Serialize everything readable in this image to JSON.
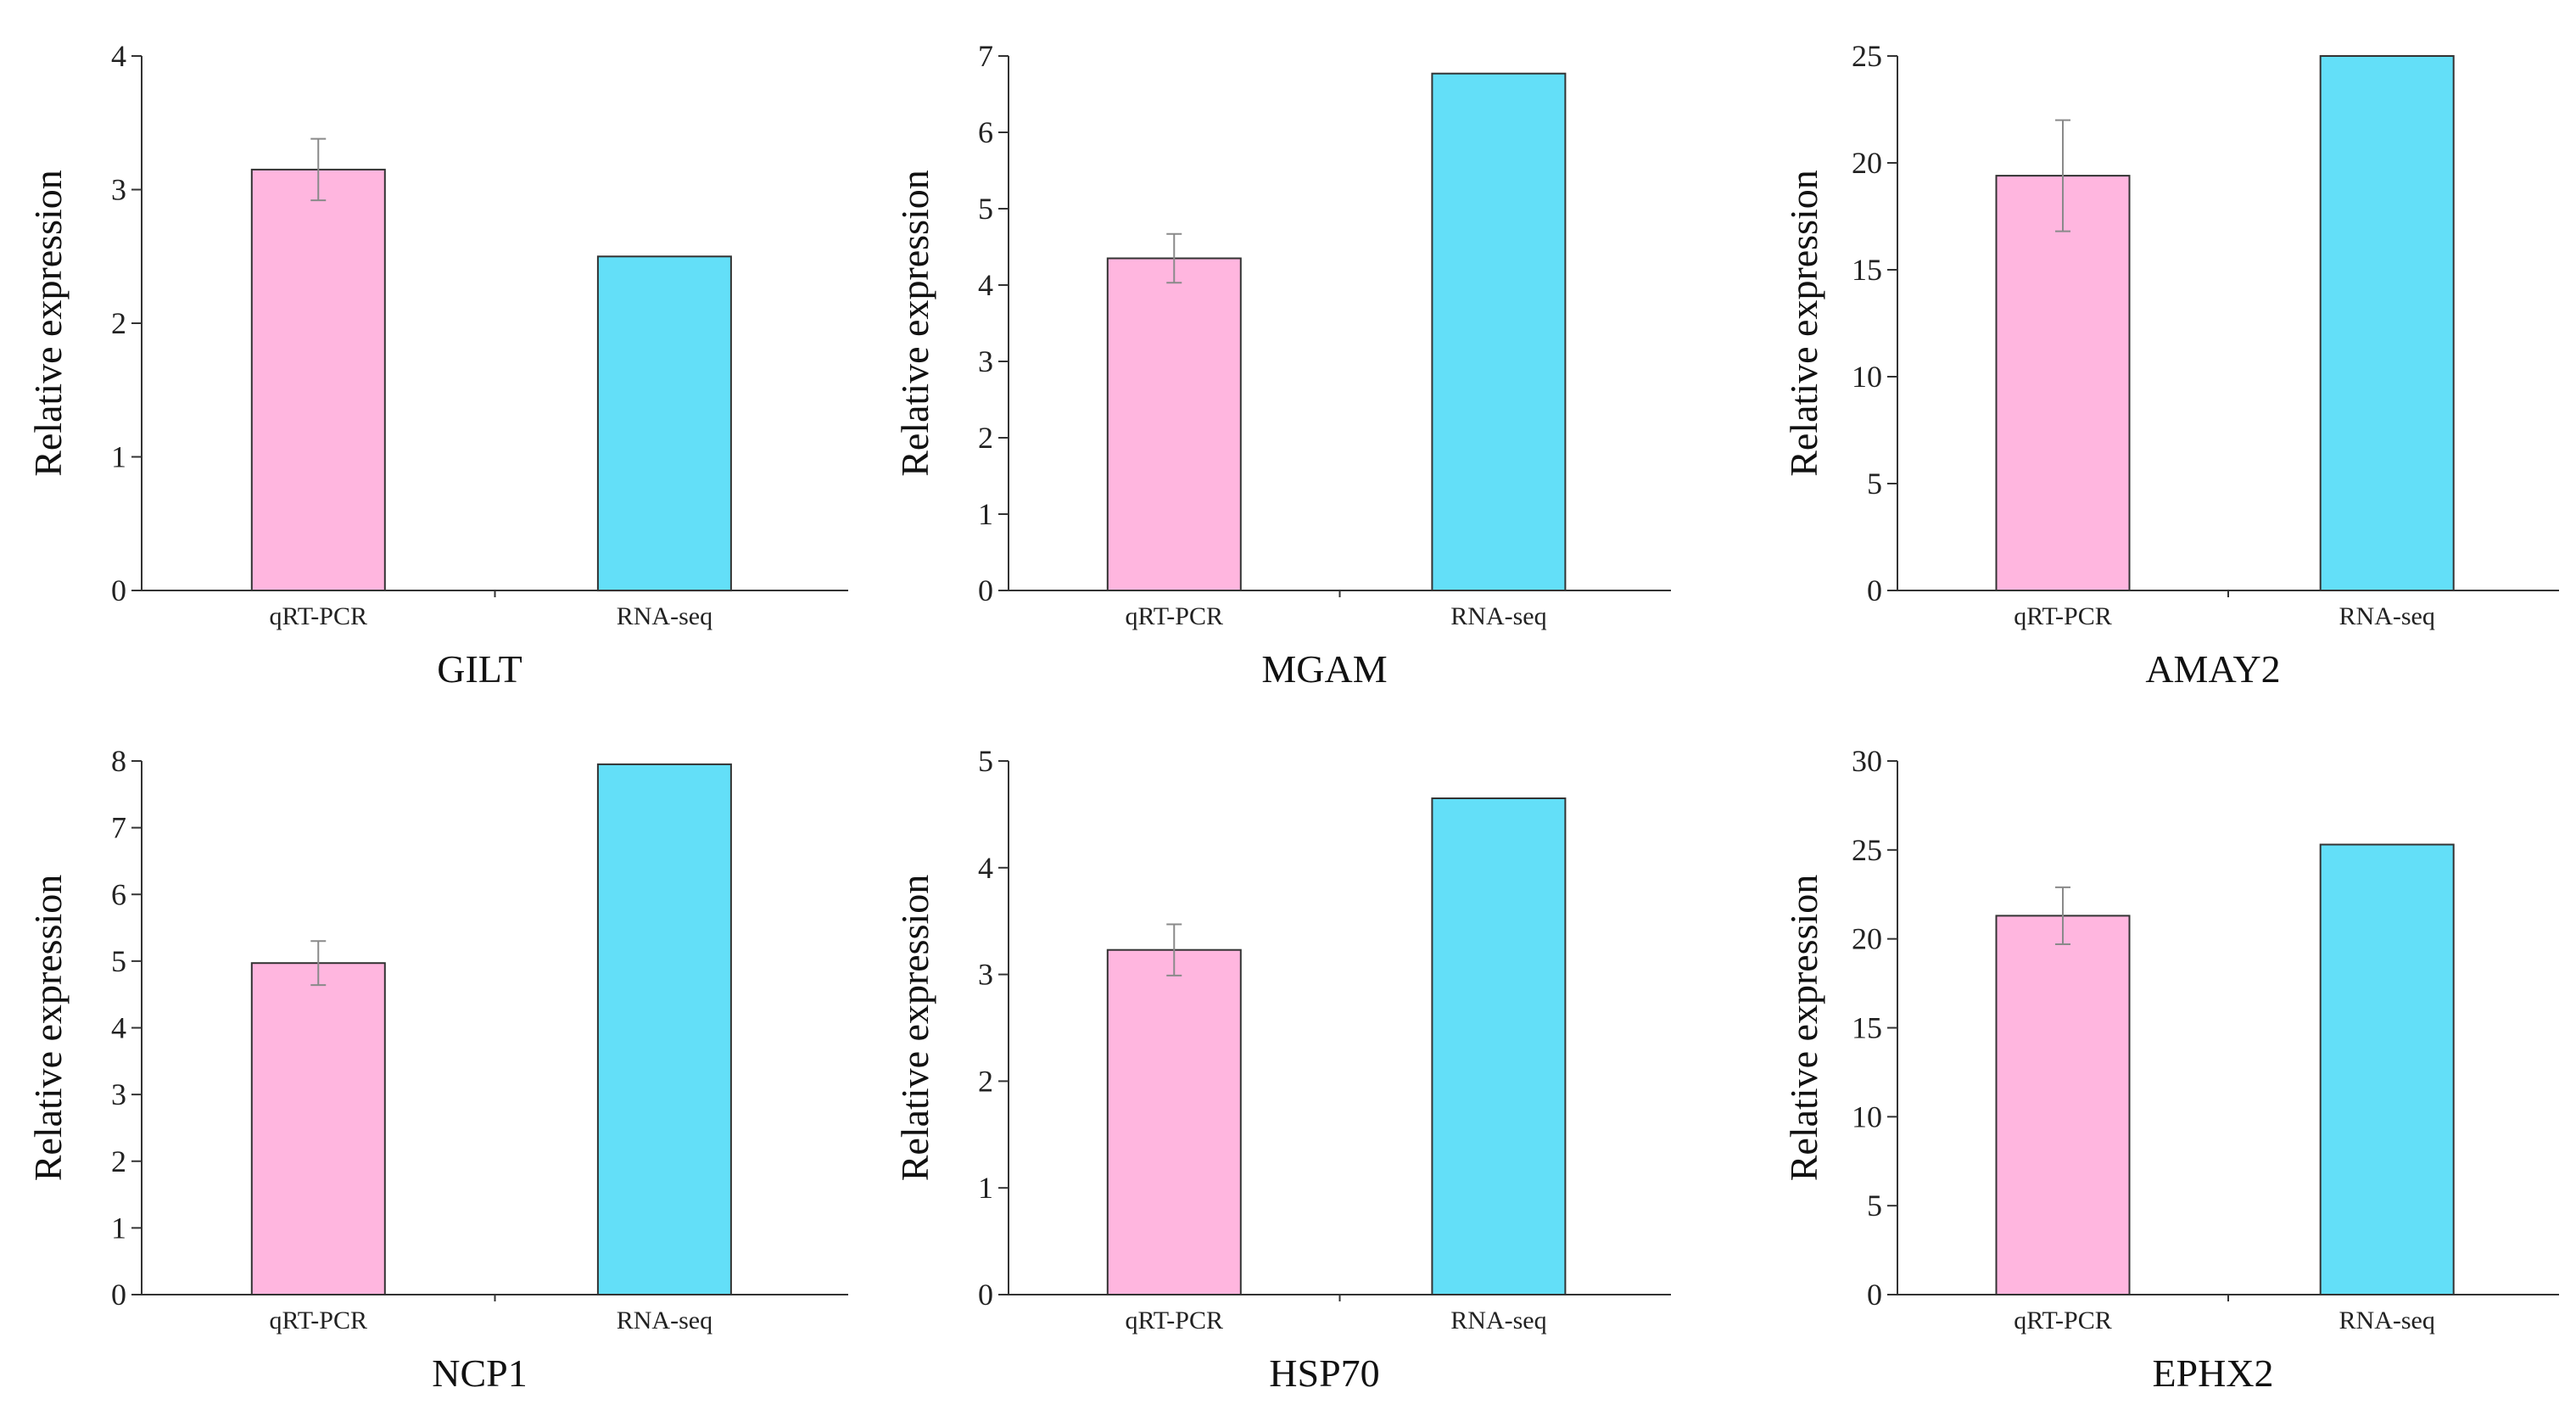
{
  "chart_data": [
    {
      "type": "bar",
      "title": "GILT",
      "ylabel": "Relative expression",
      "categories": [
        "qRT-PCR",
        "RNA-seq"
      ],
      "values": [
        3.15,
        2.5
      ],
      "errors": [
        0.23,
        null
      ],
      "ylim": [
        0,
        4
      ],
      "yticks": [
        0,
        1,
        2,
        3,
        4
      ],
      "colors": [
        "#ffb6df",
        "#63dff8"
      ],
      "grid": false
    },
    {
      "type": "bar",
      "title": "MGAM",
      "ylabel": "Relative expression",
      "categories": [
        "qRT-PCR",
        "RNA-seq"
      ],
      "values": [
        4.35,
        6.77
      ],
      "errors": [
        0.32,
        null
      ],
      "ylim": [
        0,
        7
      ],
      "yticks": [
        0,
        1,
        2,
        3,
        4,
        5,
        6,
        7
      ],
      "colors": [
        "#ffb6df",
        "#63dff8"
      ],
      "grid": false
    },
    {
      "type": "bar",
      "title": "AMAY2",
      "ylabel": "Relative expression",
      "categories": [
        "qRT-PCR",
        "RNA-seq"
      ],
      "values": [
        19.4,
        25.0
      ],
      "errors": [
        2.6,
        null
      ],
      "ylim": [
        0,
        25
      ],
      "yticks": [
        0,
        5,
        10,
        15,
        20,
        25
      ],
      "colors": [
        "#ffb6df",
        "#63dff8"
      ],
      "grid": false
    },
    {
      "type": "bar",
      "title": "NCP1",
      "ylabel": "Relative expression",
      "categories": [
        "qRT-PCR",
        "RNA-seq"
      ],
      "values": [
        4.97,
        7.95
      ],
      "errors": [
        0.33,
        null
      ],
      "ylim": [
        0,
        8
      ],
      "yticks": [
        0,
        1,
        2,
        3,
        4,
        5,
        6,
        7,
        8
      ],
      "colors": [
        "#ffb6df",
        "#63dff8"
      ],
      "grid": false
    },
    {
      "type": "bar",
      "title": "HSP70",
      "ylabel": "Relative expression",
      "categories": [
        "qRT-PCR",
        "RNA-seq"
      ],
      "values": [
        3.23,
        4.65
      ],
      "errors": [
        0.24,
        null
      ],
      "ylim": [
        0,
        5
      ],
      "yticks": [
        0,
        1,
        2,
        3,
        4,
        5
      ],
      "colors": [
        "#ffb6df",
        "#63dff8"
      ],
      "grid": false
    },
    {
      "type": "bar",
      "title": "EPHX2",
      "ylabel": "Relative expression",
      "categories": [
        "qRT-PCR",
        "RNA-seq"
      ],
      "values": [
        21.3,
        25.3
      ],
      "errors": [
        1.6,
        null
      ],
      "ylim": [
        0,
        30
      ],
      "yticks": [
        0,
        5,
        10,
        15,
        20,
        25,
        30
      ],
      "colors": [
        "#ffb6df",
        "#63dff8"
      ],
      "grid": false
    }
  ]
}
